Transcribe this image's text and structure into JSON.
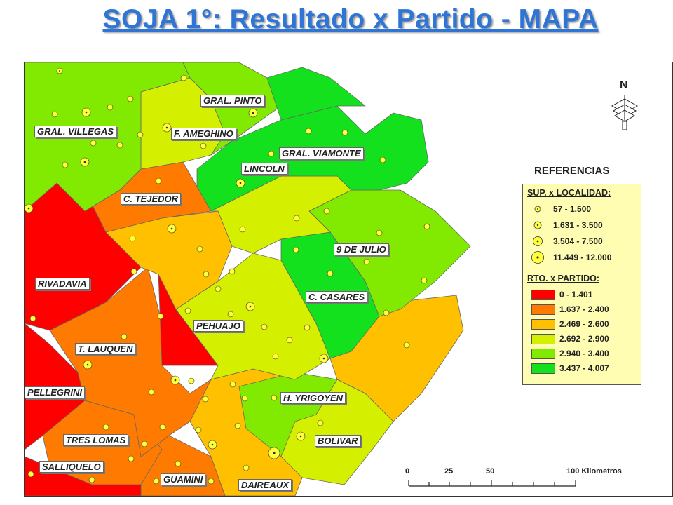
{
  "title": "SOJA 1°: Resultado x Partido - MAPA",
  "legend": {
    "title": "REFERENCIAS",
    "sup_heading": "SUP. x LOCALIDAD:",
    "sup_classes": [
      "57 - 1.500",
      "1.631 - 3.500",
      "3.504 - 7.500",
      "11.449 - 12.000"
    ],
    "rto_heading": "RTO. x PARTIDO:",
    "rto_classes": [
      {
        "label": "0 - 1.401",
        "color": "#ff0000"
      },
      {
        "label": "1.637 - 2.400",
        "color": "#ff7a00"
      },
      {
        "label": "2.469 - 2.600",
        "color": "#ffc000"
      },
      {
        "label": "2.692 - 2.900",
        "color": "#d4f000"
      },
      {
        "label": "2.940 - 3.400",
        "color": "#82e900"
      },
      {
        "label": "3.437 - 4.007",
        "color": "#14e11e"
      }
    ]
  },
  "partidos": [
    {
      "name": "GRAL. VILLEGAS",
      "class": 4
    },
    {
      "name": "GRAL. PINTO",
      "class": 4
    },
    {
      "name": "F. AMEGHINO",
      "class": 3
    },
    {
      "name": "GRAL. VIAMONTE",
      "class": 5
    },
    {
      "name": "LINCOLN",
      "class": 5
    },
    {
      "name": "C. TEJEDOR",
      "class": 1
    },
    {
      "name": "9 DE JULIO",
      "class": 4
    },
    {
      "name": "RIVADAVIA",
      "class": 0
    },
    {
      "name": "C. CASARES",
      "class": 5
    },
    {
      "name": "PEHUAJO",
      "class": 3
    },
    {
      "name": "T. LAUQUEN",
      "class": 1
    },
    {
      "name": "PELLEGRINI",
      "class": 0
    },
    {
      "name": "H. YRIGOYEN",
      "class": 4
    },
    {
      "name": "TRES LOMAS",
      "class": 1
    },
    {
      "name": "BOLIVAR",
      "class": 3
    },
    {
      "name": "SALLIQUELO",
      "class": 0
    },
    {
      "name": "GUAMINI",
      "class": 1
    },
    {
      "name": "DAIREAUX",
      "class": 2
    }
  ],
  "north_arrow": {
    "label": "N",
    "icon": "north-arrow-icon"
  },
  "scale": {
    "ticks": [
      "0",
      "25",
      "50",
      "100 Kilometros"
    ]
  }
}
